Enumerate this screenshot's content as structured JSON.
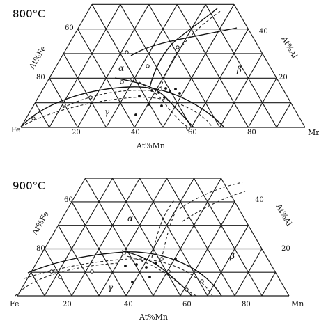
{
  "diagrams": [
    {
      "temperature": "800°C",
      "left_axis_label": "At%Fe",
      "right_axis_label": "At%Al",
      "bottom_axis_label": "At%Mn",
      "corner_left": "Fe",
      "corner_right": "Mn",
      "bottom_ticks": [
        "20",
        "40",
        "60",
        "80"
      ],
      "left_ticks": [
        "80",
        "60"
      ],
      "right_ticks": [
        "20",
        "40"
      ],
      "phases": [
        "α",
        "β",
        "γ"
      ]
    },
    {
      "temperature": "900°C",
      "left_axis_label": "At%Fe",
      "right_axis_label": "At%Al",
      "bottom_axis_label": "At%Mn",
      "corner_left": "Fe",
      "corner_right": "Mn",
      "bottom_ticks": [
        "20",
        "40",
        "60",
        "80"
      ],
      "left_ticks": [
        "80",
        "60"
      ],
      "right_ticks": [
        "20",
        "40"
      ],
      "phases": [
        "α",
        "β",
        "γ"
      ]
    }
  ]
}
